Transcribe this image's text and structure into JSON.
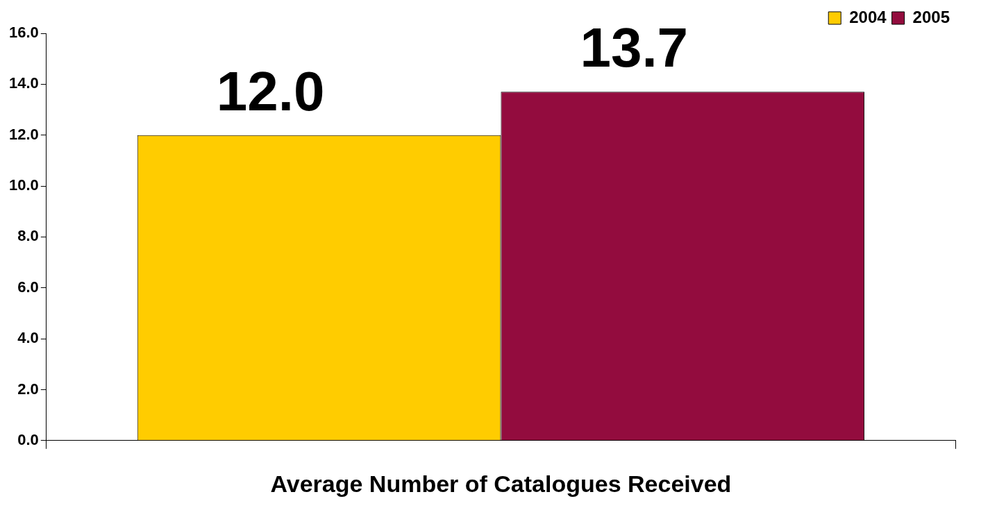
{
  "chart_data": {
    "type": "bar",
    "xlabel": "Average Number of Catalogues Received",
    "categories": [
      null
    ],
    "series": [
      {
        "name": "2004",
        "color": "#ffcc00",
        "values": [
          12.0
        ],
        "value_labels": [
          "12.0"
        ]
      },
      {
        "name": "2005",
        "color": "#930c3e",
        "values": [
          13.7
        ],
        "value_labels": [
          "13.7"
        ]
      }
    ],
    "ylim": [
      0,
      16
    ],
    "yticks": [
      {
        "value": 0,
        "label": "0.0"
      },
      {
        "value": 2,
        "label": "2.0"
      },
      {
        "value": 4,
        "label": "4.0"
      },
      {
        "value": 6,
        "label": "6.0"
      },
      {
        "value": 8,
        "label": "8.0"
      },
      {
        "value": 10,
        "label": "10.0"
      },
      {
        "value": 12,
        "label": "12.0"
      },
      {
        "value": 14,
        "label": "14.0"
      },
      {
        "value": 16,
        "label": "16.0"
      }
    ],
    "grid": false,
    "legend": "top right"
  }
}
